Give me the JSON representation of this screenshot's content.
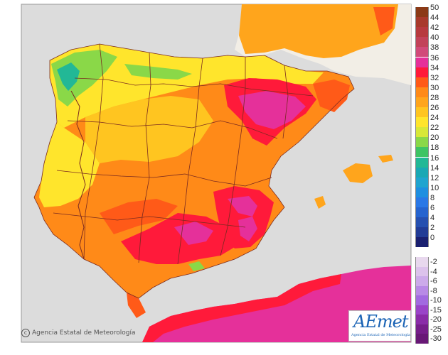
{
  "credit": "Agencia Estatal de Meteorología",
  "logo": {
    "name": "AEmet",
    "subtitle": "Agencia Estatal de Meteorología"
  },
  "legend": {
    "positive": [
      {
        "label": "50",
        "color": "#8b3a17"
      },
      {
        "label": "44",
        "color": "#a83a2c"
      },
      {
        "label": "42",
        "color": "#b73a3f"
      },
      {
        "label": "40",
        "color": "#c2425a"
      },
      {
        "label": "38",
        "color": "#d14a7a"
      },
      {
        "label": "36",
        "color": "#e5309a"
      },
      {
        "label": "34",
        "color": "#ff1a3a"
      },
      {
        "label": "32",
        "color": "#ff5a18"
      },
      {
        "label": "30",
        "color": "#ff8a18"
      },
      {
        "label": "28",
        "color": "#ffa51c"
      },
      {
        "label": "26",
        "color": "#ffc520"
      },
      {
        "label": "24",
        "color": "#ffe52c"
      },
      {
        "label": "22",
        "color": "#d8e838"
      },
      {
        "label": "20",
        "color": "#8ad848"
      },
      {
        "label": "18",
        "color": "#3ec464"
      },
      {
        "label": "16",
        "color": "#22b896"
      },
      {
        "label": "14",
        "color": "#1aa8b4"
      },
      {
        "label": "12",
        "color": "#20a4cf"
      },
      {
        "label": "10",
        "color": "#1f8fe0"
      },
      {
        "label": "8",
        "color": "#2a78e6"
      },
      {
        "label": "6",
        "color": "#2664cf"
      },
      {
        "label": "4",
        "color": "#2650b0"
      },
      {
        "label": "2",
        "color": "#223c96"
      },
      {
        "label": "0",
        "color": "#1a2070"
      }
    ],
    "negative": [
      {
        "label": "-2",
        "color": "#e8d8ee"
      },
      {
        "label": "-4",
        "color": "#dcc2ec"
      },
      {
        "label": "-6",
        "color": "#ccaaea"
      },
      {
        "label": "-8",
        "color": "#b88ae6"
      },
      {
        "label": "-10",
        "color": "#a26ae0"
      },
      {
        "label": "-15",
        "color": "#9a44c8"
      },
      {
        "label": "-20",
        "color": "#8a2ca8"
      },
      {
        "label": "-25",
        "color": "#761e8a"
      },
      {
        "label": "-30",
        "color": "#681876"
      }
    ]
  },
  "colors": {
    "sea": "#dcdcdc",
    "neighbor_land": "#f2eee6",
    "hot": "#ff8a18",
    "very_hot": "#ff1a3a",
    "extreme": "#e5309a",
    "warm": "#ffc520",
    "mild": "#ffe52c",
    "cool": "#3ec464",
    "africa": "#e5309a",
    "borders": "#7a2a20"
  }
}
